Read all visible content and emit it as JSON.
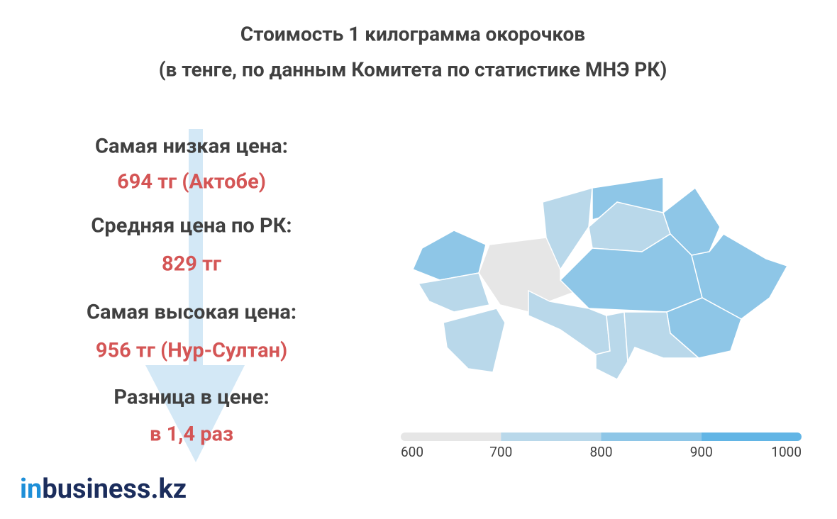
{
  "header": {
    "title": "Стоимость 1 килограмма окорочков",
    "subtitle": "(в тенге, по данным Комитета по статистике МНЭ РК)"
  },
  "stats": [
    {
      "label": "Самая низкая цена:",
      "value": "694 тг (Актобе)"
    },
    {
      "label": "Средняя цена по РК:",
      "value": "829 тг"
    },
    {
      "label": "Самая высокая цена:",
      "value": "956 тг (Нур-Султан)"
    },
    {
      "label": "Разница в цене:",
      "value": "в 1,4 раз"
    }
  ],
  "legend": {
    "ticks": [
      600,
      700,
      800,
      900,
      1000
    ],
    "colors": [
      "#e6e6e6",
      "#b9d8ea",
      "#8ec6e7",
      "#62b5e5"
    ]
  },
  "logo": {
    "prefix": "in",
    "rest": "business.kz"
  }
}
